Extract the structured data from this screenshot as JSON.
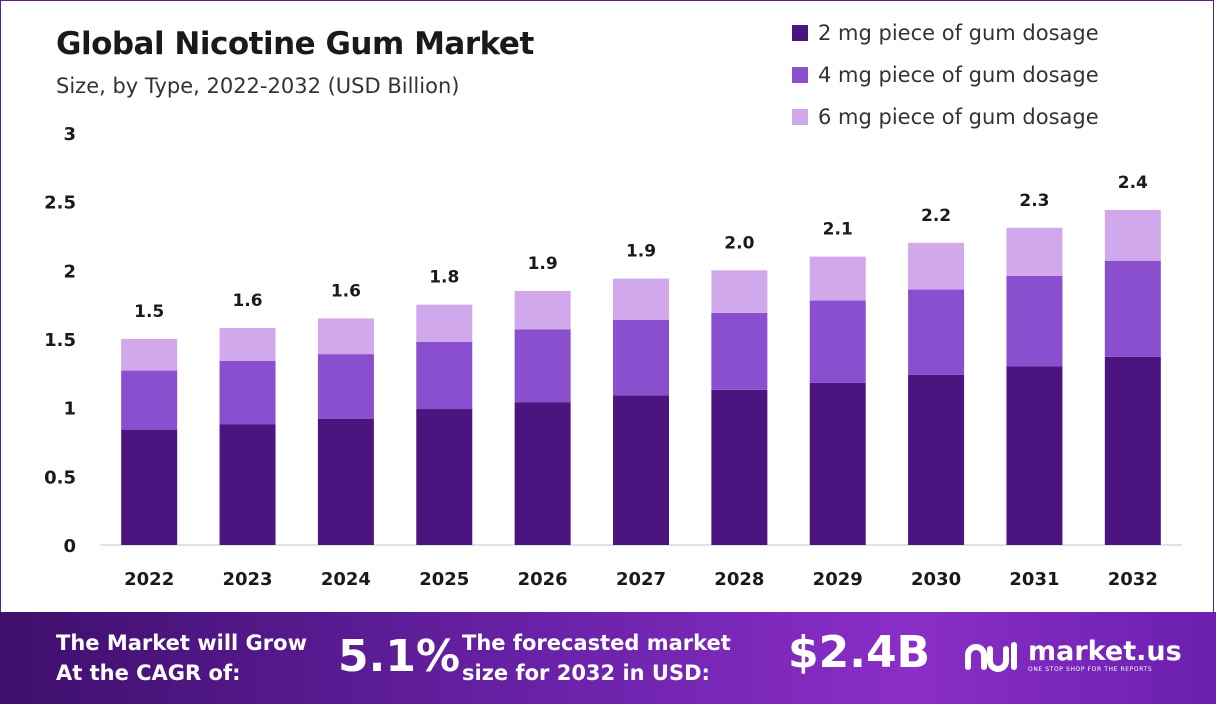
{
  "header": {
    "title": "Global Nicotine Gum Market",
    "subtitle": "Size, by Type, 2022-2032 (USD Billion)"
  },
  "colors": {
    "series_2mg": "#4b1580",
    "series_4mg": "#8a4fce",
    "series_6mg": "#d1a8ec",
    "axis_line": "#d9d9d9",
    "footer_start": "#3e0f6c",
    "footer_end": "#8a2ec8"
  },
  "chart_data": {
    "type": "bar",
    "stacked": true,
    "categories": [
      "2022",
      "2023",
      "2024",
      "2025",
      "2026",
      "2027",
      "2028",
      "2029",
      "2030",
      "2031",
      "2032"
    ],
    "series": [
      {
        "name": "2 mg piece of gum dosage",
        "values": [
          0.84,
          0.88,
          0.92,
          0.99,
          1.04,
          1.09,
          1.13,
          1.18,
          1.24,
          1.3,
          1.37
        ]
      },
      {
        "name": "4 mg piece of gum dosage",
        "values": [
          0.43,
          0.46,
          0.47,
          0.49,
          0.53,
          0.55,
          0.56,
          0.6,
          0.62,
          0.66,
          0.7
        ]
      },
      {
        "name": "6 mg piece of gum dosage",
        "values": [
          0.23,
          0.24,
          0.26,
          0.27,
          0.28,
          0.3,
          0.31,
          0.32,
          0.34,
          0.35,
          0.37
        ]
      }
    ],
    "totals_labels": [
      "1.5",
      "1.6",
      "1.6",
      "1.8",
      "1.9",
      "1.9",
      "2.0",
      "2.1",
      "2.2",
      "2.3",
      "2.4"
    ],
    "y_ticks": [
      "0",
      "0.5",
      "1",
      "1.5",
      "2",
      "2.5",
      "3"
    ],
    "ylim": [
      0,
      3
    ],
    "grid": false,
    "legend_position": "top-right",
    "xlabel": "",
    "ylabel": ""
  },
  "footer": {
    "cagr_text_line1": "The Market will Grow",
    "cagr_text_line2": "At the CAGR of:",
    "cagr_value": "5.1%",
    "forecast_text_line1": "The forecasted market",
    "forecast_text_line2": "size for 2032 in USD:",
    "forecast_value": "$2.4B",
    "brand_name": "market.us",
    "brand_tagline": "ONE STOP SHOP FOR THE REPORTS"
  }
}
